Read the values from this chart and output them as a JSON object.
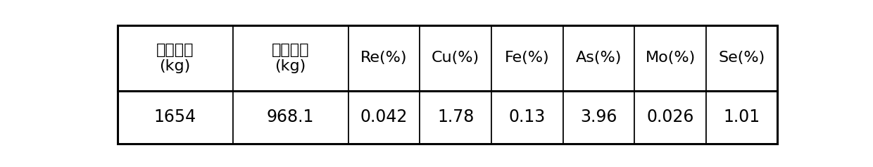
{
  "header_row": [
    "湿脱杂渣\n(kg)",
    "干脱杂渣\n(kg)",
    "Re(%)",
    "Cu(%)",
    "Fe(%)",
    "As(%)",
    "Mo(%)",
    "Se(%)"
  ],
  "data_row": [
    "1654",
    "968.1",
    "0.042",
    "1.78",
    "0.13",
    "3.96",
    "0.026",
    "1.01"
  ],
  "col_widths_rel": [
    1.55,
    1.55,
    0.96,
    0.96,
    0.96,
    0.96,
    0.96,
    0.96
  ],
  "background_color": "#ffffff",
  "border_color": "#000000",
  "text_color": "#000000",
  "header_fontsize": 16,
  "data_fontsize": 17,
  "fig_width": 12.4,
  "fig_height": 2.37,
  "dpi": 100
}
